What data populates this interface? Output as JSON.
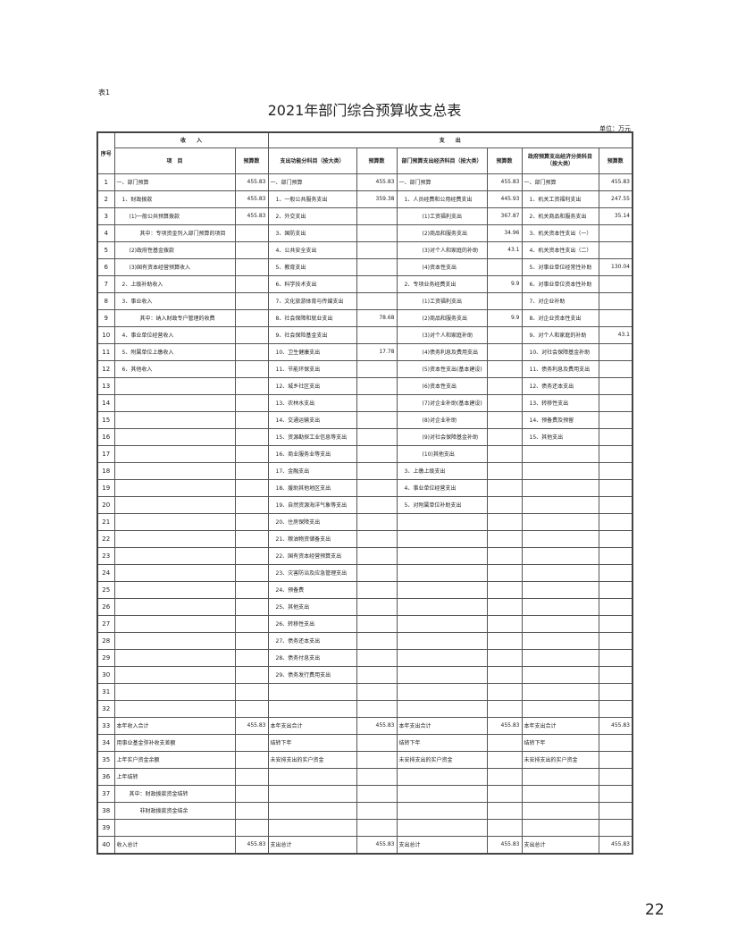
{
  "table_no": "表1",
  "title": "2021年部门综合预算收支总表",
  "unit": "单位：万元",
  "page_number": "22",
  "header": {
    "seq": "序号",
    "income_group": "收　　入",
    "expense_group": "支　　出",
    "columns": [
      "项　目",
      "预算数",
      "支出功能分科目（按大类）",
      "预算数",
      "部门预算支出经济科目（按大类）",
      "预算数",
      "政府预算支出经济分类科目（按大类）",
      "预算数"
    ]
  },
  "rows": [
    [
      "1",
      "一、部门预算",
      "455.83",
      "一、部门预算",
      "455.83",
      "一、部门预算",
      "455.83",
      "一、部门预算",
      "455.83"
    ],
    [
      "2",
      "1、财政拨款",
      "455.83",
      "1、一般公共服务支出",
      "359.38",
      "1、人员经费和公用经费支出",
      "445.93",
      "1、机关工资福利支出",
      "247.55"
    ],
    [
      "3",
      "(1)一般公共预算拨款",
      "455.83",
      "2、外交支出",
      "",
      "(1)工资福利支出",
      "367.87",
      "2、机关商品和服务支出",
      "35.14"
    ],
    [
      "4",
      "其中：专项资金列入部门预算的项目",
      "",
      "3、国防支出",
      "",
      "(2)商品和服务支出",
      "34.96",
      "3、机关资本性支出（一）",
      ""
    ],
    [
      "5",
      "(2)政府性基金拨款",
      "",
      "4、公共安全支出",
      "",
      "(3)对个人和家庭的补助",
      "43.1",
      "4、机关资本性支出（二）",
      ""
    ],
    [
      "6",
      "(3)国有资本经营预算收入",
      "",
      "5、教育支出",
      "",
      "(4)资本性支出",
      "",
      "5、对事业单位经常性补助",
      "130.04"
    ],
    [
      "7",
      "2、上级补助收入",
      "",
      "6、科学技术支出",
      "",
      "2、专项业务经费支出",
      "9.9",
      "6、对事业单位资本性补助",
      ""
    ],
    [
      "8",
      "3、事业收入",
      "",
      "7、文化旅游体育与传媒支出",
      "",
      "(1)工资福利支出",
      "",
      "7、对企业补助",
      ""
    ],
    [
      "9",
      "其中：纳入财政专户管理的收费",
      "",
      "8、社会保障和就业支出",
      "78.68",
      "(2)商品和服务支出",
      "9.9",
      "8、对企业资本性支出",
      ""
    ],
    [
      "10",
      "4、事业单位经营收入",
      "",
      "9、社会保险基金支出",
      "",
      "(3)对个人和家庭补助",
      "",
      "9、对个人和家庭的补助",
      "43.1"
    ],
    [
      "11",
      "5、附属单位上缴收入",
      "",
      "10、卫生健康支出",
      "17.78",
      "(4)债务利息及费用支出",
      "",
      "10、对社会保障基金补助",
      ""
    ],
    [
      "12",
      "6、其他收入",
      "",
      "11、节能环保支出",
      "",
      "(5)资本性支出(基本建设)",
      "",
      "11、债务利息及费用支出",
      ""
    ],
    [
      "13",
      "",
      "",
      "12、城乡社区支出",
      "",
      "(6)资本性支出",
      "",
      "12、债务还本支出",
      ""
    ],
    [
      "14",
      "",
      "",
      "13、农林水支出",
      "",
      "(7)对企业补助(基本建设)",
      "",
      "13、转移性支出",
      ""
    ],
    [
      "15",
      "",
      "",
      "14、交通运输支出",
      "",
      "(8)对企业补助",
      "",
      "14、预备费及预留",
      ""
    ],
    [
      "16",
      "",
      "",
      "15、资源勘探工业信息等支出",
      "",
      "(9)对社会保障基金补助",
      "",
      "15、其他支出",
      ""
    ],
    [
      "17",
      "",
      "",
      "16、商业服务业等支出",
      "",
      "(10)其他支出",
      "",
      "",
      ""
    ],
    [
      "18",
      "",
      "",
      "17、金融支出",
      "",
      "3、上缴上级支出",
      "",
      "",
      ""
    ],
    [
      "19",
      "",
      "",
      "18、援助其他地区支出",
      "",
      "4、事业单位经营支出",
      "",
      "",
      ""
    ],
    [
      "20",
      "",
      "",
      "19、自然资源海洋气象等支出",
      "",
      "5、对附属单位补助支出",
      "",
      "",
      ""
    ],
    [
      "21",
      "",
      "",
      "20、住房保障支出",
      "",
      "",
      "",
      "",
      ""
    ],
    [
      "22",
      "",
      "",
      "21、粮油物资储备支出",
      "",
      "",
      "",
      "",
      ""
    ],
    [
      "23",
      "",
      "",
      "22、国有资本经营预算支出",
      "",
      "",
      "",
      "",
      ""
    ],
    [
      "24",
      "",
      "",
      "23、灾害防治及应急管理支出",
      "",
      "",
      "",
      "",
      ""
    ],
    [
      "25",
      "",
      "",
      "24、预备费",
      "",
      "",
      "",
      "",
      ""
    ],
    [
      "26",
      "",
      "",
      "25、其他支出",
      "",
      "",
      "",
      "",
      ""
    ],
    [
      "27",
      "",
      "",
      "26、转移性支出",
      "",
      "",
      "",
      "",
      ""
    ],
    [
      "28",
      "",
      "",
      "27、债务还本支出",
      "",
      "",
      "",
      "",
      ""
    ],
    [
      "29",
      "",
      "",
      "28、债务付息支出",
      "",
      "",
      "",
      "",
      ""
    ],
    [
      "30",
      "",
      "",
      "29、债务发行费用支出",
      "",
      "",
      "",
      "",
      ""
    ],
    [
      "31",
      "",
      "",
      "",
      "",
      "",
      "",
      "",
      ""
    ],
    [
      "32",
      "",
      "",
      "",
      "",
      "",
      "",
      "",
      ""
    ],
    [
      "33",
      "本年收入合计",
      "455.83",
      "本年支出合计",
      "455.83",
      "本年支出合计",
      "455.83",
      "本年支出合计",
      "455.83"
    ],
    [
      "34",
      "用事业基金弥补收支差额",
      "",
      "结转下年",
      "",
      "结转下年",
      "",
      "结转下年",
      ""
    ],
    [
      "35",
      "上年实户资金余额",
      "",
      "未安排支出的实户资金",
      "",
      "未安排支出的实户资金",
      "",
      "未安排支出的实户资金",
      ""
    ],
    [
      "36",
      "上年结转",
      "",
      "",
      "",
      "",
      "",
      "",
      ""
    ],
    [
      "37",
      "其中：财政拨款资金结转",
      "",
      "",
      "",
      "",
      "",
      "",
      ""
    ],
    [
      "38",
      "非财政拨款资金结余",
      "",
      "",
      "",
      "",
      "",
      "",
      ""
    ],
    [
      "39",
      "",
      "",
      "",
      "",
      "",
      "",
      "",
      ""
    ],
    [
      "40",
      "收入总计",
      "455.83",
      "支出总计",
      "455.83",
      "支出总计",
      "455.83",
      "支出总计",
      "455.83"
    ]
  ]
}
